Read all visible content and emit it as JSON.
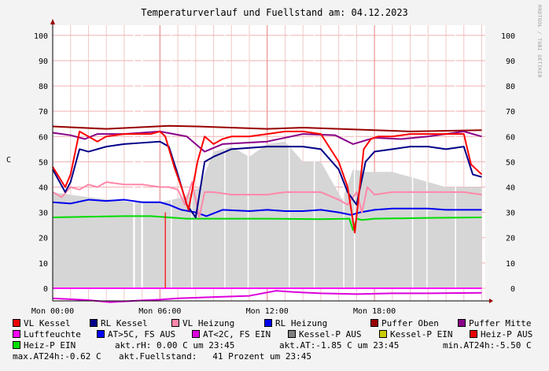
{
  "title": "Temperaturverlauf und Fuellstand am: 04.12.2023",
  "watermark": "RRDTOOL / TOBI OETIKER",
  "ylabel": "C",
  "chart_data": {
    "type": "line",
    "ylim": [
      -5,
      104
    ],
    "yticks": [
      0,
      10,
      20,
      30,
      40,
      50,
      60,
      70,
      80,
      90,
      100
    ],
    "x_ticks": [
      {
        "label": "Mon 00:00",
        "h": 0
      },
      {
        "label": "Mon 06:00",
        "h": 6
      },
      {
        "label": "Mon 12:00",
        "h": 12
      },
      {
        "label": "Mon 18:00",
        "h": 18
      }
    ],
    "xlim_hours": [
      0,
      24.2
    ],
    "grid": true,
    "fill_area": {
      "name": "Kessel-P AUS",
      "color": "#d6d6d6",
      "x": [
        0,
        2,
        4.5,
        6,
        7.3,
        8.2,
        9,
        10,
        11,
        12,
        13,
        14,
        15,
        16.2,
        16.8,
        17.5,
        18,
        19,
        20,
        21,
        22,
        23,
        24
      ],
      "y": [
        38,
        36,
        34,
        34,
        36,
        40,
        54,
        56,
        52,
        57,
        58,
        50,
        50,
        35,
        47,
        46,
        46,
        46,
        44,
        42,
        40,
        40,
        40
      ],
      "gaps": [
        [
          4.5,
          4.6
        ],
        [
          4.95,
          5.05
        ],
        [
          6.6,
          6.65
        ],
        [
          7.75,
          7.8
        ],
        [
          9.6,
          9.65
        ],
        [
          10.9,
          10.95
        ],
        [
          13.2,
          13.25
        ],
        [
          14.6,
          14.65
        ],
        [
          16.25,
          16.3
        ],
        [
          16.85,
          16.9
        ],
        [
          20.1,
          20.15
        ],
        [
          20.9,
          20.95
        ],
        [
          22.5,
          22.55
        ]
      ]
    },
    "series": [
      {
        "name": "Puffer Oben",
        "color": "#990000",
        "width": 2,
        "x": [
          0,
          3,
          6.5,
          8,
          12,
          14,
          16,
          18,
          20,
          24
        ],
        "y": [
          64,
          63,
          64.2,
          64,
          63,
          63.5,
          63,
          62.5,
          62,
          62.5
        ]
      },
      {
        "name": "Puffer Mitte",
        "color": "#880088",
        "width": 2,
        "x": [
          0,
          1,
          1.8,
          2.5,
          4,
          6,
          7.5,
          8.5,
          9.5,
          12,
          14,
          15.8,
          16.8,
          18,
          19.5,
          21,
          23,
          24
        ],
        "y": [
          61.5,
          60.5,
          59,
          61,
          61,
          62,
          60,
          54,
          57,
          58,
          61,
          60.5,
          57,
          59.5,
          59,
          60,
          62,
          60
        ]
      },
      {
        "name": "Luftfeuchte",
        "color": "#ff00ff",
        "width": 2,
        "x": [
          0,
          24
        ],
        "y": [
          0,
          0
        ]
      },
      {
        "name": "AT<2C, FS EIN",
        "color": "#dd00dd",
        "width": 2,
        "x": [
          0,
          2,
          3.2,
          5,
          6,
          7,
          9,
          11,
          12.5,
          13.5,
          15,
          17,
          19,
          21,
          24
        ],
        "y": [
          -4,
          -4.7,
          -5.5,
          -4.8,
          -4.5,
          -4,
          -3.5,
          -3,
          -1,
          -1.5,
          -2,
          -2.3,
          -2,
          -2,
          -1.8
        ]
      },
      {
        "name": "Heiz-P EIN",
        "color": "#00dd00",
        "width": 2,
        "x": [
          0,
          2,
          4,
          5.5,
          6.5,
          7.5,
          9,
          12,
          15,
          16.6,
          16.8,
          17,
          17.3,
          18,
          21,
          24
        ],
        "y": [
          28,
          28.3,
          28.5,
          28.5,
          28,
          27.5,
          27.5,
          27.5,
          27.3,
          27.5,
          23,
          27.5,
          27,
          27.5,
          27.8,
          28
        ]
      },
      {
        "name": "RL Heizung",
        "color": "#0000ee",
        "width": 2,
        "x": [
          0,
          1,
          2,
          3,
          4,
          5,
          6,
          6.5,
          7.2,
          8,
          8.6,
          9.5,
          11,
          12,
          13,
          14,
          15,
          16,
          16.7,
          17.2,
          18,
          19,
          20,
          21,
          22,
          23,
          24
        ],
        "y": [
          34,
          33.5,
          35,
          34.5,
          35,
          34,
          34,
          33,
          31,
          30,
          28.5,
          31,
          30.5,
          31,
          30.5,
          30.5,
          31,
          30,
          29,
          30,
          31,
          31.5,
          31.5,
          31.5,
          31,
          31,
          31
        ]
      },
      {
        "name": "VL Heizung",
        "color": "#ff88aa",
        "width": 2,
        "x": [
          0,
          0.5,
          1,
          1.5,
          2,
          2.5,
          3,
          4,
          5,
          6,
          6.5,
          7,
          7.4,
          7.8,
          8.2,
          8.5,
          9,
          10,
          11,
          12,
          13,
          14,
          15,
          16,
          16.5,
          17,
          17.3,
          17.6,
          18,
          19,
          20,
          21,
          22,
          23,
          24
        ],
        "y": [
          38,
          36,
          40,
          39,
          41,
          40,
          42,
          41,
          41,
          40,
          40,
          39,
          33,
          42,
          28,
          38,
          38,
          37,
          37,
          37,
          38,
          38,
          38,
          35,
          33,
          38,
          30,
          40,
          37,
          38,
          38,
          38,
          38,
          38,
          37
        ]
      },
      {
        "name": "RL Kessel",
        "color": "#000088",
        "width": 2,
        "x": [
          0,
          0.7,
          1,
          1.5,
          2,
          3,
          4,
          5,
          6,
          6.5,
          7,
          7.5,
          8,
          8.5,
          9,
          10,
          11,
          12,
          13,
          14,
          15,
          16,
          16.5,
          17,
          17.5,
          18,
          19,
          20,
          21,
          22,
          23,
          23.5,
          24
        ],
        "y": [
          47,
          38,
          42,
          55,
          54,
          56,
          57,
          57.5,
          58,
          56,
          45,
          33,
          28,
          50,
          52,
          55,
          55.5,
          56,
          56,
          56,
          55,
          47,
          38,
          33,
          50,
          54,
          55,
          56,
          56,
          55,
          56,
          45,
          44
        ]
      },
      {
        "name": "VL Kessel",
        "color": "#ff0000",
        "width": 2,
        "x": [
          0,
          0.7,
          1,
          1.5,
          2,
          2.5,
          3,
          4,
          5,
          5.5,
          6,
          6.3,
          6.8,
          7.2,
          7.6,
          8.1,
          8.5,
          9,
          9.5,
          10,
          11,
          12,
          13,
          14,
          15,
          16,
          16.5,
          16.9,
          17.1,
          17.4,
          17.8,
          18.2,
          19,
          20,
          21,
          22,
          23,
          23.4,
          24
        ],
        "y": [
          48,
          40,
          45,
          62,
          60,
          58,
          60,
          61,
          61,
          61,
          62,
          60,
          48,
          40,
          31,
          50,
          60,
          57,
          59,
          60,
          60,
          61,
          62,
          62,
          61,
          50,
          40,
          22,
          35,
          55,
          59,
          60,
          60,
          61,
          61,
          61,
          61,
          49,
          45
        ]
      },
      {
        "name": "Heiz-P AUS",
        "color": "#ff0000",
        "width": 1.2,
        "x": [
          6.3,
          6.3
        ],
        "y": [
          0,
          30
        ]
      }
    ],
    "legend": [
      {
        "name": "VL Kessel",
        "color": "#ee0000"
      },
      {
        "name": "RL Kessel",
        "color": "#000088"
      },
      {
        "name": "VL Heizung",
        "color": "#ff88aa"
      },
      {
        "name": "RL Heizung",
        "color": "#0000ee"
      },
      {
        "name": "Puffer Oben",
        "color": "#990000"
      },
      {
        "name": "Puffer Mitte",
        "color": "#880088"
      },
      {
        "name": "Luftfeuchte",
        "color": "#ff00ff"
      },
      {
        "name": "AT>5C, FS AUS",
        "color": "#0000ff"
      },
      {
        "name": "AT<2C, FS EIN",
        "color": "#dd00dd"
      },
      {
        "name": "Kessel-P AUS",
        "color": "#808080"
      },
      {
        "name": "Kessel-P EIN",
        "color": "#cccc00"
      },
      {
        "name": "Heiz-P AUS",
        "color": "#ee0000"
      },
      {
        "name": "Heiz-P EIN",
        "color": "#00dd00"
      }
    ]
  },
  "info": {
    "rh": "akt.rH: 0.00 C um 23:45",
    "at": "akt.AT:-1.85 C um 23:45",
    "min_at": "min.AT24h:-5.50 C",
    "max_at": "max.AT24h:-0.62 C",
    "fuellstand": "akt.Fuellstand:   41 Prozent um 23:45"
  }
}
